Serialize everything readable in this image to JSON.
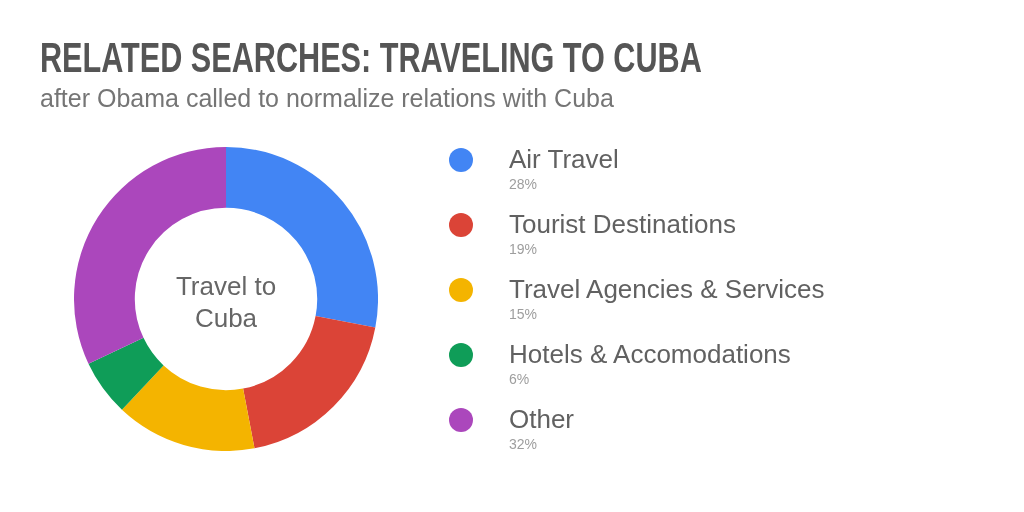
{
  "chart_data": {
    "type": "donut",
    "title": "RELATED SEARCHES: TRAVELING TO CUBA",
    "subtitle": "after Obama called to normalize relations with Cuba",
    "categories": [
      "Air Travel",
      "Tourist Destinations",
      "Travel Agencies & Services",
      "Hotels & Accomodations",
      "Other"
    ],
    "values": [
      28,
      19,
      15,
      6,
      32
    ],
    "colors": [
      "#4285f4",
      "#db4437",
      "#f4b400",
      "#0f9d58",
      "#ab47bc"
    ],
    "value_labels": [
      "28%",
      "19%",
      "15%",
      "6%",
      "32%"
    ],
    "annotations": [
      "Travel to Cuba"
    ],
    "legend": "right"
  }
}
